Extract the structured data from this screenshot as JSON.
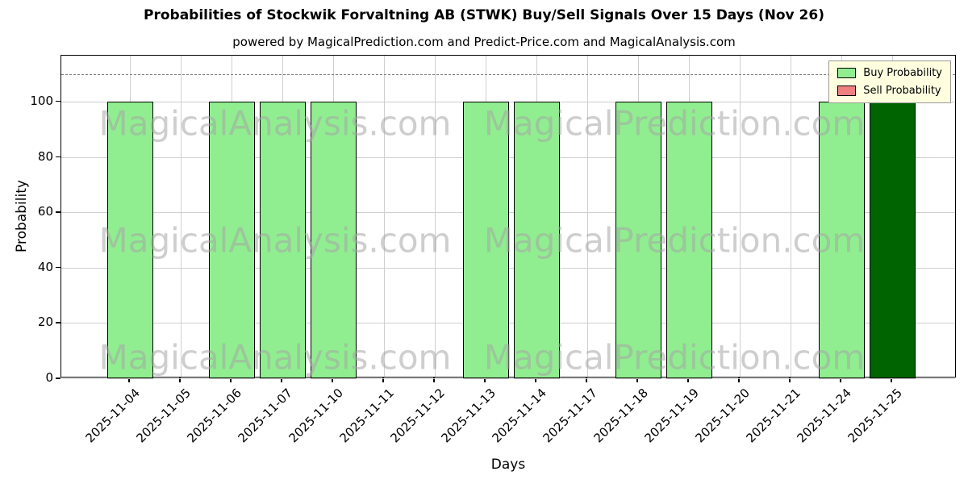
{
  "title": "Probabilities of Stockwik Forvaltning AB (STWK) Buy/Sell Signals Over 15 Days (Nov 26)",
  "subtitle": "powered by MagicalPrediction.com and Predict-Price.com and MagicalAnalysis.com",
  "legend": {
    "position": "top-right",
    "background": "#ffffe0",
    "items": [
      {
        "label": "Buy Probability",
        "color": "#90ee90"
      },
      {
        "label": "Sell Probability",
        "color": "#f08080"
      }
    ]
  },
  "watermarks": {
    "texts": [
      "MagicalAnalysis.com",
      "MagicalPrediction.com"
    ],
    "color": "rgba(165,165,165,0.55)",
    "rows": 3
  },
  "chart_data": {
    "type": "bar",
    "title": "Probabilities of Stockwik Forvaltning AB (STWK) Buy/Sell Signals Over 15 Days (Nov 26)",
    "xlabel": "Days",
    "ylabel": "Probability",
    "categories": [
      "2025-11-04",
      "2025-11-05",
      "2025-11-06",
      "2025-11-07",
      "2025-11-10",
      "2025-11-11",
      "2025-11-12",
      "2025-11-13",
      "2025-11-14",
      "2025-11-17",
      "2025-11-18",
      "2025-11-19",
      "2025-11-20",
      "2025-11-21",
      "2025-11-24",
      "2025-11-25"
    ],
    "series": [
      {
        "name": "Buy Probability",
        "color": "#90ee90",
        "values": [
          100,
          0,
          100,
          100,
          100,
          0,
          0,
          100,
          100,
          0,
          100,
          100,
          0,
          0,
          100,
          110
        ]
      },
      {
        "name": "Sell Probability",
        "color": "#f08080",
        "values": [
          0,
          0,
          0,
          0,
          0,
          0,
          0,
          0,
          0,
          0,
          0,
          0,
          0,
          0,
          0,
          0
        ]
      }
    ],
    "bar_colors_override": {
      "15": "#006400"
    },
    "yticks": [
      0,
      20,
      40,
      60,
      80,
      100
    ],
    "ylim": [
      0,
      116.6
    ],
    "threshold_line": {
      "value": 110,
      "style": "dashed",
      "color": "#7f7f7f"
    },
    "grid": true,
    "x_tick_rotation": 45
  }
}
